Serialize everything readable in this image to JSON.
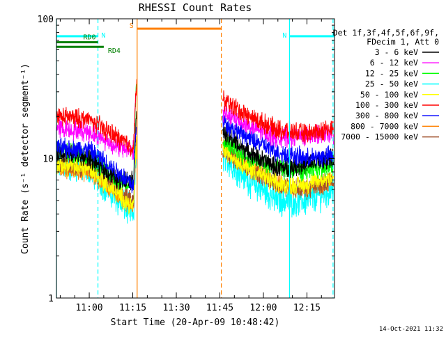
{
  "chart_data": {
    "type": "line",
    "title": "RHESSI Count Rates",
    "xlabel": "Start Time (20-Apr-09 10:48:42)",
    "ylabel": "Count Rate (s⁻¹ detector segment⁻¹)",
    "y_scale": "log",
    "ylim": [
      1,
      100
    ],
    "xlim": [
      "10:48:42",
      "12:24:30"
    ],
    "x_ticks": [
      "11:00",
      "11:15",
      "11:30",
      "11:45",
      "12:00",
      "12:15"
    ],
    "y_ticks": [
      "1",
      "10",
      "100"
    ],
    "grid": false,
    "legend_position": "right",
    "legend_header": [
      "Det 1f,3f,4f,5f,6f,9f,",
      "FDecim 1, Att 0"
    ],
    "series": [
      {
        "name": "3 - 6 keV",
        "color": "#000000",
        "x": [
          "10:49",
          "11:00",
          "11:10",
          "11:15",
          "11:45",
          "11:55",
          "12:05",
          "12:15",
          "12:24"
        ],
        "values": [
          11.0,
          10.0,
          7.0,
          7.0,
          16.0,
          11.0,
          8.5,
          9.0,
          10.0
        ]
      },
      {
        "name": "6 - 12 keV",
        "color": "#ff00ff",
        "x": [
          "10:49",
          "11:00",
          "11:10",
          "11:15",
          "11:45",
          "11:55",
          "12:05",
          "12:15",
          "12:24"
        ],
        "values": [
          16.5,
          15.5,
          12.0,
          11.5,
          22.0,
          17.0,
          14.0,
          14.5,
          15.0
        ]
      },
      {
        "name": "12 - 25 keV",
        "color": "#00ff00",
        "x": [
          "10:49",
          "11:00",
          "11:10",
          "11:15",
          "11:45",
          "11:55",
          "12:05",
          "12:15",
          "12:24"
        ],
        "values": [
          11.5,
          10.5,
          7.0,
          6.5,
          14.0,
          10.0,
          8.5,
          8.0,
          9.0
        ]
      },
      {
        "name": "25 - 50 keV",
        "color": "#00ffff",
        "x": [
          "10:49",
          "11:00",
          "11:10",
          "11:15",
          "11:45",
          "11:55",
          "12:05",
          "12:15",
          "12:24"
        ],
        "values": [
          9.0,
          8.5,
          5.0,
          4.0,
          11.0,
          7.0,
          5.0,
          5.0,
          6.0
        ]
      },
      {
        "name": "50 - 100 keV",
        "color": "#ffff00",
        "x": [
          "10:49",
          "11:00",
          "11:10",
          "11:15",
          "11:45",
          "11:55",
          "12:05",
          "12:15",
          "12:24"
        ],
        "values": [
          9.0,
          8.5,
          5.5,
          4.5,
          12.0,
          8.5,
          6.5,
          6.5,
          7.5
        ]
      },
      {
        "name": "100 - 300 keV",
        "color": "#ff0000",
        "x": [
          "10:49",
          "11:00",
          "11:10",
          "11:15",
          "11:45",
          "11:55",
          "12:05",
          "12:15",
          "12:24"
        ],
        "values": [
          20.0,
          19.0,
          14.0,
          12.0,
          27.0,
          20.0,
          16.0,
          15.0,
          16.5
        ]
      },
      {
        "name": "300 - 800 keV",
        "color": "#0000ff",
        "x": [
          "10:49",
          "11:00",
          "11:10",
          "11:15",
          "11:45",
          "11:55",
          "12:05",
          "12:15",
          "12:24"
        ],
        "values": [
          12.0,
          11.5,
          8.0,
          6.5,
          19.0,
          14.0,
          11.0,
          10.0,
          10.5
        ]
      },
      {
        "name": "800 - 7000 keV",
        "color": "#ff8000",
        "x": [
          "10:49",
          "11:00",
          "11:10",
          "11:15",
          "11:45",
          "11:55",
          "12:05",
          "12:15",
          "12:24"
        ],
        "values": [
          8.5,
          8.0,
          5.5,
          4.5,
          13.0,
          8.5,
          6.5,
          6.0,
          7.0
        ]
      },
      {
        "name": "7000 - 15000 keV",
        "color": "#a0522d",
        "x": [
          "10:49",
          "11:00",
          "11:10",
          "11:15",
          "11:45",
          "11:55",
          "12:05",
          "12:15",
          "12:24"
        ],
        "values": [
          9.0,
          8.5,
          6.0,
          5.0,
          12.0,
          8.5,
          6.5,
          6.0,
          7.0
        ]
      }
    ],
    "flags": [
      {
        "label": "N",
        "color": "#00ffff",
        "value": 75,
        "start": "10:48:42",
        "end": "11:03:00"
      },
      {
        "label": "N",
        "color": "#00ffff",
        "value": 75,
        "start": "12:09:00",
        "end": "12:24:30"
      },
      {
        "label": "RD0",
        "color": "#008000",
        "value": 68,
        "start": "10:48:42",
        "end": "11:03:00"
      },
      {
        "label": "RD4",
        "color": "#008000",
        "value": 63,
        "start": "10:48:42",
        "end": "11:05:00"
      },
      {
        "label": "S",
        "color": "#ff8000",
        "value": 85,
        "start": "11:16:30",
        "end": "11:45:30"
      }
    ],
    "vlines": [
      {
        "time": "10:48:42",
        "color": "#00ffff",
        "style": "solid"
      },
      {
        "time": "11:03:00",
        "color": "#00ffff",
        "style": "dashed"
      },
      {
        "time": "11:16:30",
        "color": "#ff8000",
        "style": "solid"
      },
      {
        "time": "11:45:30",
        "color": "#ff8000",
        "style": "dashed"
      },
      {
        "time": "12:09:00",
        "color": "#00ffff",
        "style": "solid"
      },
      {
        "time": "12:24:00",
        "color": "#00ffff",
        "style": "dashed"
      }
    ],
    "gaps": [
      [
        "11:16:30",
        "11:45:30"
      ]
    ],
    "spike_time": "11:16:00"
  },
  "timestamp": "14-Oct-2021 11:32"
}
